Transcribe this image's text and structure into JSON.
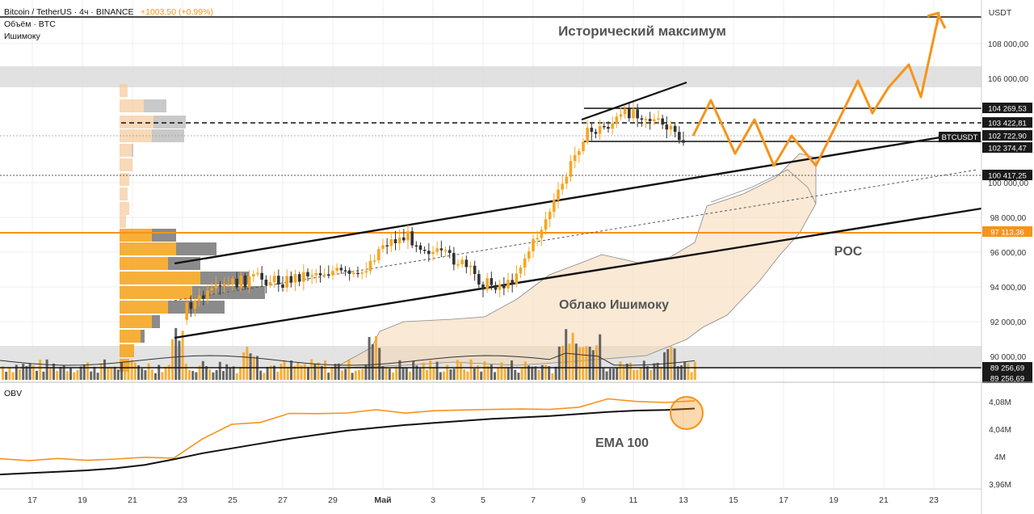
{
  "header": {
    "symbol": "Bitcoin / TetherUS · 4ч · BINANCE",
    "change": "+1003,50 (+0,99%)",
    "indicator_volume": "Объём · BTC",
    "indicator_ichimoku": "Ишимоку"
  },
  "colors": {
    "orange": "#f7931a",
    "bull": "#f5a623",
    "bear": "#555555",
    "channel": "#111111",
    "cloud": "#f5d7b3"
  },
  "annotations": {
    "ath": "Исторический максимум",
    "poc": "POC",
    "cloud": "Облако Ишимоку",
    "ema": "EMA 100"
  },
  "price_axis": {
    "unit": "USDT",
    "ticks": [
      "108 000,00",
      "106 000,00",
      "100 000,00",
      "98 000,00",
      "96 000,00",
      "94 000,00",
      "92 000,00",
      "90 000,00"
    ],
    "tick_values": [
      108000,
      106000,
      100000,
      98000,
      96000,
      94000,
      92000,
      90000
    ],
    "badges": [
      {
        "text": "104 269,53",
        "value": 104269.53,
        "style": "dark"
      },
      {
        "text": "103 422,81",
        "value": 103422.81,
        "style": "dark"
      },
      {
        "text": "102 722,90",
        "value": 102722.9,
        "style": "dark"
      },
      {
        "text": "102 374,47",
        "value": 102374.47,
        "style": "dark"
      },
      {
        "text": "100 417,25",
        "value": 100417.25,
        "style": "dark"
      },
      {
        "text": "97 113,36",
        "value": 97113.36,
        "style": "orange"
      },
      {
        "text": "89 256,69",
        "value": 89256.69,
        "style": "dark"
      },
      {
        "text": "89 256,69",
        "value": 89256.69,
        "style": "dark"
      }
    ],
    "symbol_tag": "BTCUSDT"
  },
  "obv_panel": {
    "title": "OBV",
    "ticks": [
      "4,08M",
      "4,04M",
      "4M",
      "3,96M"
    ],
    "tick_values": [
      4.08,
      4.04,
      4.0,
      3.96
    ]
  },
  "time_axis": {
    "labels": [
      "17",
      "19",
      "21",
      "23",
      "25",
      "27",
      "29",
      "Май",
      "3",
      "5",
      "7",
      "9",
      "11",
      "13",
      "15",
      "17",
      "19",
      "21",
      "23"
    ]
  },
  "chart_data": [
    {
      "type": "candlestick",
      "symbol": "BTCUSDT",
      "ylim": [
        89000,
        109500
      ],
      "x_range_days": [
        "Apr 16",
        "May 24"
      ],
      "levels": [
        104269.53,
        103422.81,
        102722.9,
        102374.47,
        100417.25,
        97113.36,
        89256.69
      ],
      "ath_level": 109200,
      "close_path": [
        {
          "day": "Apr 23",
          "close": 92800
        },
        {
          "day": "Apr 24",
          "close": 93500
        },
        {
          "day": "Apr 25",
          "close": 94200
        },
        {
          "day": "Apr 26",
          "close": 94500
        },
        {
          "day": "Apr 27",
          "close": 94300
        },
        {
          "day": "Apr 28",
          "close": 94800
        },
        {
          "day": "Apr 29",
          "close": 94900
        },
        {
          "day": "Apr 30",
          "close": 94500
        },
        {
          "day": "May 1",
          "close": 96500
        },
        {
          "day": "May 2",
          "close": 96900
        },
        {
          "day": "May 3",
          "close": 96000
        },
        {
          "day": "May 4",
          "close": 95500
        },
        {
          "day": "May 5",
          "close": 94200
        },
        {
          "day": "May 6",
          "close": 94100
        },
        {
          "day": "May 7",
          "close": 96500
        },
        {
          "day": "May 8",
          "close": 99300
        },
        {
          "day": "May 9",
          "close": 102700
        },
        {
          "day": "May 10",
          "close": 103300
        },
        {
          "day": "May 11",
          "close": 104200
        },
        {
          "day": "May 12",
          "close": 103400
        },
        {
          "day": "May 13",
          "close": 102400
        }
      ],
      "projection": [
        {
          "day": "May 13",
          "value": 102500
        },
        {
          "day": "May 14",
          "value": 104500
        },
        {
          "day": "May 15",
          "value": 102000
        },
        {
          "day": "May 16",
          "value": 103300
        },
        {
          "day": "May 17",
          "value": 100700
        },
        {
          "day": "May 18",
          "value": 102500
        },
        {
          "day": "May 19",
          "value": 100700
        },
        {
          "day": "May 20",
          "value": 102200
        },
        {
          "day": "May 21",
          "value": 104700
        },
        {
          "day": "May 22",
          "value": 105800
        },
        {
          "day": "May 23",
          "value": 104000
        },
        {
          "day": "May 24",
          "value": 105500
        },
        {
          "day": "May 25",
          "value": 103500
        },
        {
          "day": "May 26",
          "value": 106500
        },
        {
          "day": "May 27",
          "value": 105000
        },
        {
          "day": "May 28",
          "value": 109200
        },
        {
          "day": "May 29",
          "value": 108800
        }
      ]
    },
    {
      "type": "line",
      "name": "OBV",
      "ylim": [
        3.95,
        4.1
      ],
      "series": [
        {
          "name": "OBV",
          "values": [
            3.997,
            3.996,
            3.995,
            3.996,
            3.997,
            3.997,
            4.0,
            4.025,
            4.046,
            4.052,
            4.061,
            4.063,
            4.065,
            4.066,
            4.065,
            4.067,
            4.066,
            4.071,
            4.068,
            4.068,
            4.074,
            4.082,
            4.081,
            4.08,
            4.079
          ]
        },
        {
          "name": "EMA 100",
          "values": [
            3.974,
            3.976,
            3.978,
            3.98,
            3.983,
            3.988,
            3.996,
            4.005,
            4.012,
            4.019,
            4.026,
            4.032,
            4.038,
            4.042,
            4.046,
            4.049,
            4.052,
            4.055,
            4.057,
            4.059,
            4.062,
            4.065,
            4.067,
            4.068,
            4.07
          ]
        }
      ]
    }
  ]
}
